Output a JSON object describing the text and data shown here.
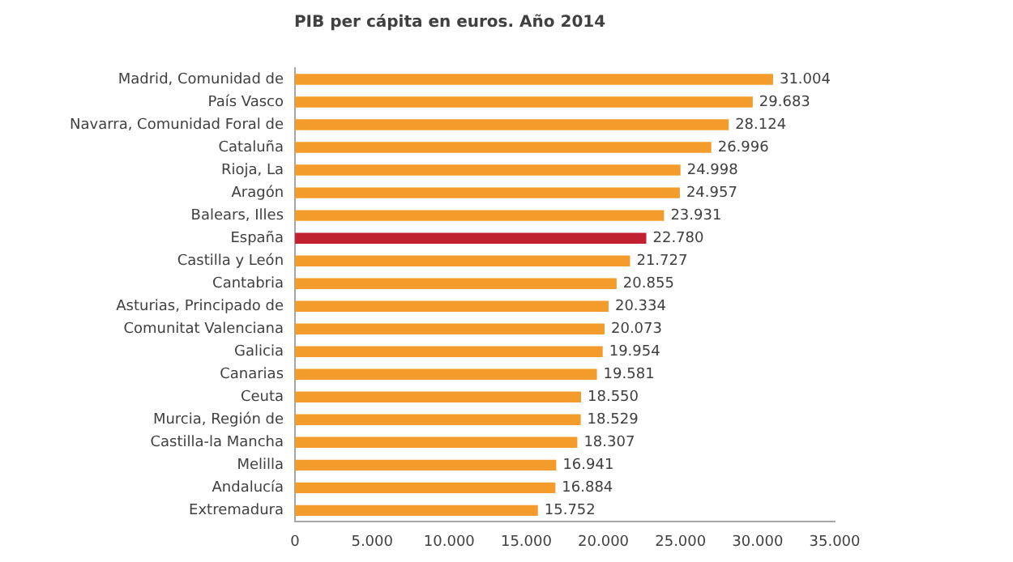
{
  "chart_data": {
    "type": "bar",
    "orientation": "horizontal",
    "title": "PIB per cápita en euros. Año 2014",
    "categories": [
      "Madrid, Comunidad de",
      "País Vasco",
      "Navarra, Comunidad Foral de",
      "Cataluña",
      "Rioja, La",
      "Aragón",
      "Balears, Illes",
      "España",
      "Castilla y León",
      "Cantabria",
      "Asturias, Principado de",
      "Comunitat Valenciana",
      "Galicia",
      "Canarias",
      "Ceuta",
      "Murcia, Región de",
      "Castilla-la Mancha",
      "Melilla",
      "Andalucía",
      "Extremadura"
    ],
    "values": [
      31004,
      29683,
      28124,
      26996,
      24998,
      24957,
      23931,
      22780,
      21727,
      20855,
      20334,
      20073,
      19954,
      19581,
      18550,
      18529,
      18307,
      16941,
      16884,
      15752
    ],
    "colors": [
      "#f39c2b",
      "#f39c2b",
      "#f39c2b",
      "#f39c2b",
      "#f39c2b",
      "#f39c2b",
      "#f39c2b",
      "#c0202f",
      "#f39c2b",
      "#f39c2b",
      "#f39c2b",
      "#f39c2b",
      "#f39c2b",
      "#f39c2b",
      "#f39c2b",
      "#f39c2b",
      "#f39c2b",
      "#f39c2b",
      "#f39c2b",
      "#f39c2b"
    ],
    "value_labels": [
      "31.004",
      "29.683",
      "28.124",
      "26.996",
      "24.998",
      "24.957",
      "23.931",
      "22.780",
      "21.727",
      "20.855",
      "20.334",
      "20.073",
      "19.954",
      "19.581",
      "18.550",
      "18.529",
      "18.307",
      "16.941",
      "16.884",
      "15.752"
    ],
    "xlim": [
      0,
      35000
    ],
    "xticks": [
      0,
      {
        "value": 5000,
        "label": "5.000"
      },
      {
        "value": 10000,
        "label": "10.000"
      },
      {
        "value": 15000,
        "label": "15.000"
      },
      {
        "value": 20000,
        "label": "20.000"
      },
      {
        "value": 25000,
        "label": "25.000"
      },
      {
        "value": 30000,
        "label": "30.000"
      },
      {
        "value": 35000,
        "label": "35.000"
      }
    ],
    "grid": false,
    "legend": false
  }
}
